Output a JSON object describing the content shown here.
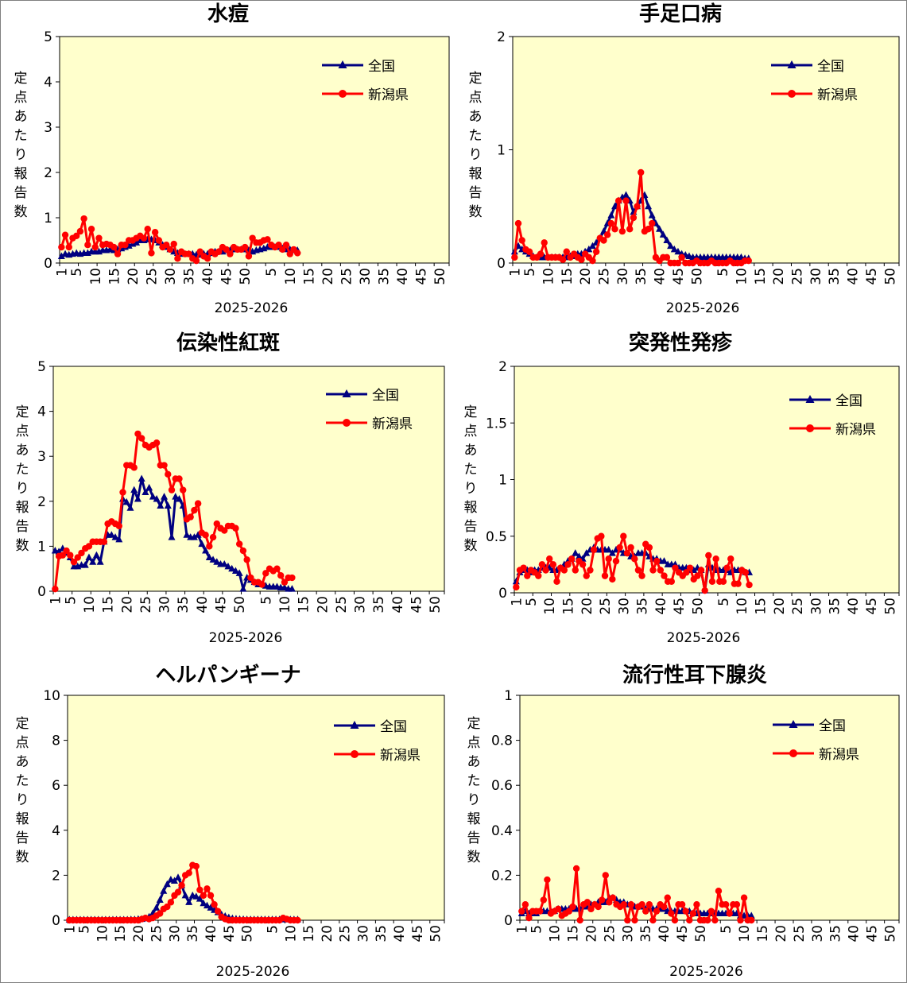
{
  "colors": {
    "national": "#000080",
    "niigata": "#ff0000",
    "plot_bg": "#ffffcc"
  },
  "legend": {
    "national": "全国",
    "niigata": "新潟県"
  },
  "ylabel": "定点あたり報告数",
  "xlabel": "2025-2026",
  "xticks": [
    "1",
    "5",
    "10",
    "15",
    "20",
    "25",
    "30",
    "35",
    "40",
    "45",
    "50",
    "5",
    "10",
    "15",
    "20",
    "25",
    "30",
    "35",
    "40",
    "45",
    "50"
  ],
  "chart_data": [
    {
      "type": "line",
      "title": "水痘",
      "ylim": [
        0,
        5
      ],
      "yticks": [
        "0",
        "1",
        "2",
        "3",
        "4",
        "5"
      ],
      "series": [
        {
          "name": "全国",
          "values": [
            0.15,
            0.2,
            0.18,
            0.2,
            0.22,
            0.2,
            0.22,
            0.22,
            0.25,
            0.25,
            0.25,
            0.28,
            0.28,
            0.3,
            0.28,
            0.3,
            0.32,
            0.35,
            0.38,
            0.42,
            0.45,
            0.5,
            0.5,
            0.52,
            0.52,
            0.5,
            0.45,
            0.4,
            0.35,
            0.3,
            0.25,
            0.22,
            0.2,
            0.2,
            0.2,
            0.2,
            0.18,
            0.18,
            0.2,
            0.2,
            0.22,
            0.25,
            0.25,
            0.25,
            0.28,
            0.28,
            0.3,
            0.3,
            0.3,
            0.3,
            0.28,
            0.25,
            0.28,
            0.3,
            0.32,
            0.35,
            0.35,
            0.35,
            0.35,
            0.32,
            0.3,
            0.3,
            0.28,
            0.28
          ]
        },
        {
          "name": "新潟県",
          "values": [
            0.35,
            0.62,
            0.35,
            0.55,
            0.6,
            0.7,
            0.98,
            0.4,
            0.75,
            0.35,
            0.55,
            0.4,
            0.42,
            0.4,
            0.35,
            0.2,
            0.4,
            0.4,
            0.5,
            0.5,
            0.55,
            0.6,
            0.55,
            0.75,
            0.22,
            0.68,
            0.5,
            0.35,
            0.4,
            0.3,
            0.42,
            0.1,
            0.25,
            0.2,
            0.2,
            0.1,
            0.05,
            0.25,
            0.15,
            0.1,
            0.25,
            0.2,
            0.25,
            0.35,
            0.3,
            0.2,
            0.35,
            0.3,
            0.3,
            0.35,
            0.15,
            0.55,
            0.45,
            0.45,
            0.5,
            0.52,
            0.4,
            0.35,
            0.4,
            0.3,
            0.4,
            0.2,
            0.3,
            0.22
          ]
        }
      ]
    },
    {
      "type": "line",
      "title": "手足口病",
      "ylim": [
        0,
        2
      ],
      "yticks": [
        "0",
        "1",
        "2"
      ],
      "series": [
        {
          "name": "全国",
          "values": [
            0.1,
            0.15,
            0.12,
            0.1,
            0.08,
            0.06,
            0.05,
            0.05,
            0.05,
            0.05,
            0.05,
            0.05,
            0.05,
            0.05,
            0.05,
            0.06,
            0.06,
            0.08,
            0.08,
            0.1,
            0.12,
            0.15,
            0.18,
            0.22,
            0.28,
            0.35,
            0.42,
            0.5,
            0.55,
            0.58,
            0.6,
            0.55,
            0.45,
            0.5,
            0.55,
            0.6,
            0.5,
            0.42,
            0.35,
            0.3,
            0.25,
            0.2,
            0.15,
            0.12,
            0.1,
            0.08,
            0.07,
            0.06,
            0.05,
            0.05,
            0.05,
            0.05,
            0.05,
            0.05,
            0.05,
            0.05,
            0.05,
            0.05,
            0.05,
            0.05,
            0.05,
            0.05,
            0.04,
            0.04
          ]
        },
        {
          "name": "新潟県",
          "values": [
            0.05,
            0.35,
            0.2,
            0.12,
            0.1,
            0.05,
            0.05,
            0.08,
            0.18,
            0.05,
            0.05,
            0.05,
            0.05,
            0.03,
            0.1,
            0.05,
            0.08,
            0.05,
            0.03,
            0.08,
            0.05,
            0.02,
            0.1,
            0.22,
            0.2,
            0.25,
            0.35,
            0.3,
            0.55,
            0.28,
            0.55,
            0.3,
            0.4,
            0.5,
            0.8,
            0.28,
            0.3,
            0.35,
            0.05,
            0.02,
            0.05,
            0.05,
            0.0,
            0.0,
            0.0,
            0.05,
            0.0,
            0.0,
            0.0,
            0.02,
            0.0,
            0.0,
            0.0,
            0.02,
            0.0,
            0.0,
            0.0,
            0.0,
            0.02,
            0.0,
            0.0,
            0.0,
            0.02,
            0.02
          ]
        }
      ]
    },
    {
      "type": "line",
      "title": "伝染性紅斑",
      "ylim": [
        0,
        5
      ],
      "yticks": [
        "0",
        "1",
        "2",
        "3",
        "4",
        "5"
      ],
      "series": [
        {
          "name": "全国",
          "values": [
            0.9,
            0.88,
            0.95,
            0.85,
            0.75,
            0.55,
            0.55,
            0.58,
            0.58,
            0.75,
            0.65,
            0.8,
            0.65,
            1.1,
            1.25,
            1.25,
            1.2,
            1.15,
            2.05,
            1.98,
            1.85,
            2.25,
            2.05,
            2.5,
            2.2,
            2.3,
            2.1,
            2.05,
            1.9,
            2.1,
            1.9,
            1.2,
            2.1,
            2.05,
            1.9,
            1.25,
            1.2,
            1.2,
            1.25,
            1.05,
            0.9,
            0.75,
            0.7,
            0.65,
            0.6,
            0.6,
            0.55,
            0.5,
            0.45,
            0.4,
            0.05,
            0.3,
            0.25,
            0.2,
            0.15,
            0.15,
            0.12,
            0.1,
            0.1,
            0.1,
            0.08,
            0.08,
            0.05,
            0.05
          ]
        },
        {
          "name": "新潟県",
          "values": [
            0.05,
            0.78,
            0.8,
            0.9,
            0.8,
            0.65,
            0.75,
            0.85,
            0.95,
            1.0,
            1.1,
            1.1,
            1.1,
            1.1,
            1.5,
            1.55,
            1.5,
            1.45,
            2.2,
            2.8,
            2.8,
            2.75,
            3.5,
            3.4,
            3.25,
            3.2,
            3.25,
            3.3,
            2.8,
            2.8,
            2.6,
            2.25,
            2.5,
            2.5,
            2.25,
            1.6,
            1.65,
            1.8,
            1.95,
            1.3,
            1.25,
            1.0,
            1.2,
            1.5,
            1.4,
            1.35,
            1.45,
            1.45,
            1.4,
            1.05,
            0.9,
            0.7,
            0.3,
            0.2,
            0.2,
            0.15,
            0.4,
            0.5,
            0.45,
            0.5,
            0.35,
            0.2,
            0.3,
            0.3
          ]
        }
      ]
    },
    {
      "type": "line",
      "title": "突発性発疹",
      "ylim": [
        0,
        2
      ],
      "yticks": [
        "0",
        "0.5",
        "1",
        "1.5",
        "2"
      ],
      "series": [
        {
          "name": "全国",
          "values": [
            0.1,
            0.18,
            0.2,
            0.2,
            0.18,
            0.2,
            0.2,
            0.22,
            0.22,
            0.22,
            0.2,
            0.2,
            0.22,
            0.25,
            0.28,
            0.3,
            0.35,
            0.32,
            0.3,
            0.35,
            0.38,
            0.4,
            0.38,
            0.38,
            0.38,
            0.38,
            0.35,
            0.38,
            0.38,
            0.35,
            0.35,
            0.32,
            0.32,
            0.35,
            0.35,
            0.35,
            0.32,
            0.3,
            0.3,
            0.28,
            0.28,
            0.25,
            0.25,
            0.25,
            0.22,
            0.22,
            0.22,
            0.2,
            0.2,
            0.22,
            0.2,
            0.02,
            0.25,
            0.22,
            0.2,
            0.2,
            0.2,
            0.2,
            0.18,
            0.2,
            0.2,
            0.2,
            0.18,
            0.18
          ]
        },
        {
          "name": "新潟県",
          "values": [
            0.05,
            0.2,
            0.22,
            0.15,
            0.2,
            0.18,
            0.15,
            0.25,
            0.2,
            0.3,
            0.25,
            0.1,
            0.22,
            0.2,
            0.25,
            0.3,
            0.2,
            0.28,
            0.25,
            0.15,
            0.2,
            0.38,
            0.48,
            0.5,
            0.15,
            0.3,
            0.12,
            0.28,
            0.4,
            0.5,
            0.35,
            0.4,
            0.3,
            0.2,
            0.15,
            0.43,
            0.4,
            0.2,
            0.28,
            0.2,
            0.15,
            0.1,
            0.1,
            0.22,
            0.18,
            0.15,
            0.18,
            0.22,
            0.12,
            0.15,
            0.2,
            0.02,
            0.33,
            0.1,
            0.3,
            0.1,
            0.1,
            0.22,
            0.3,
            0.08,
            0.08,
            0.2,
            0.18,
            0.07
          ]
        }
      ]
    },
    {
      "type": "line",
      "title": "ヘルパンギーナ",
      "ylim": [
        0,
        10
      ],
      "yticks": [
        "0",
        "2",
        "4",
        "6",
        "8",
        "10"
      ],
      "series": [
        {
          "name": "全国",
          "values": [
            0.02,
            0.02,
            0.02,
            0.02,
            0.02,
            0.02,
            0.02,
            0.02,
            0.02,
            0.02,
            0.02,
            0.02,
            0.02,
            0.02,
            0.02,
            0.02,
            0.02,
            0.03,
            0.03,
            0.05,
            0.05,
            0.08,
            0.15,
            0.3,
            0.55,
            0.9,
            1.3,
            1.6,
            1.8,
            1.75,
            1.9,
            1.55,
            1.1,
            0.8,
            1.1,
            1.05,
            0.95,
            0.75,
            0.65,
            0.55,
            0.45,
            0.35,
            0.25,
            0.18,
            0.12,
            0.08,
            0.06,
            0.05,
            0.04,
            0.03,
            0.03,
            0.03,
            0.03,
            0.03,
            0.03,
            0.03,
            0.03,
            0.03,
            0.03,
            0.03,
            0.03,
            0.03,
            0.03,
            0.03
          ]
        },
        {
          "name": "新潟県",
          "values": [
            0.0,
            0.0,
            0.0,
            0.0,
            0.0,
            0.0,
            0.0,
            0.0,
            0.0,
            0.0,
            0.0,
            0.0,
            0.0,
            0.0,
            0.0,
            0.0,
            0.0,
            0.0,
            0.0,
            0.0,
            0.05,
            0.1,
            0.05,
            0.1,
            0.2,
            0.3,
            0.5,
            0.6,
            0.8,
            1.1,
            1.25,
            1.55,
            2.0,
            2.1,
            2.45,
            2.4,
            1.35,
            1.1,
            1.4,
            1.1,
            0.7,
            0.4,
            0.15,
            0.05,
            0.0,
            0.0,
            0.0,
            0.0,
            0.0,
            0.0,
            0.0,
            0.0,
            0.0,
            0.0,
            0.0,
            0.0,
            0.0,
            0.0,
            0.0,
            0.1,
            0.05,
            0.0,
            0.0,
            0.0
          ]
        }
      ]
    },
    {
      "type": "line",
      "title": "流行性耳下腺炎",
      "ylim": [
        0,
        1
      ],
      "yticks": [
        "0",
        "0.2",
        "0.4",
        "0.6",
        "0.8",
        "1"
      ],
      "series": [
        {
          "name": "全国",
          "values": [
            0.03,
            0.04,
            0.03,
            0.03,
            0.03,
            0.04,
            0.04,
            0.04,
            0.04,
            0.04,
            0.05,
            0.05,
            0.05,
            0.05,
            0.05,
            0.05,
            0.05,
            0.06,
            0.06,
            0.07,
            0.07,
            0.08,
            0.08,
            0.08,
            0.1,
            0.1,
            0.09,
            0.08,
            0.08,
            0.07,
            0.07,
            0.06,
            0.06,
            0.06,
            0.05,
            0.05,
            0.05,
            0.05,
            0.05,
            0.05,
            0.04,
            0.04,
            0.04,
            0.04,
            0.04,
            0.04,
            0.04,
            0.03,
            0.03,
            0.03,
            0.03,
            0.03,
            0.03,
            0.03,
            0.03,
            0.03,
            0.03,
            0.03,
            0.03,
            0.03,
            0.02,
            0.02,
            0.02,
            0.02
          ]
        },
        {
          "name": "新潟県",
          "values": [
            0.04,
            0.07,
            0.01,
            0.04,
            0.04,
            0.04,
            0.09,
            0.18,
            0.03,
            0.04,
            0.05,
            0.02,
            0.03,
            0.04,
            0.06,
            0.23,
            0.0,
            0.07,
            0.08,
            0.05,
            0.07,
            0.06,
            0.09,
            0.2,
            0.08,
            0.1,
            0.07,
            0.06,
            0.07,
            0.0,
            0.07,
            0.0,
            0.06,
            0.07,
            0.04,
            0.07,
            0.0,
            0.04,
            0.07,
            0.06,
            0.1,
            0.03,
            0.0,
            0.07,
            0.07,
            0.04,
            0.0,
            0.03,
            0.07,
            0.0,
            0.0,
            0.0,
            0.04,
            0.0,
            0.13,
            0.07,
            0.07,
            0.03,
            0.07,
            0.07,
            0.0,
            0.1,
            0.0,
            0.0
          ]
        }
      ]
    }
  ]
}
